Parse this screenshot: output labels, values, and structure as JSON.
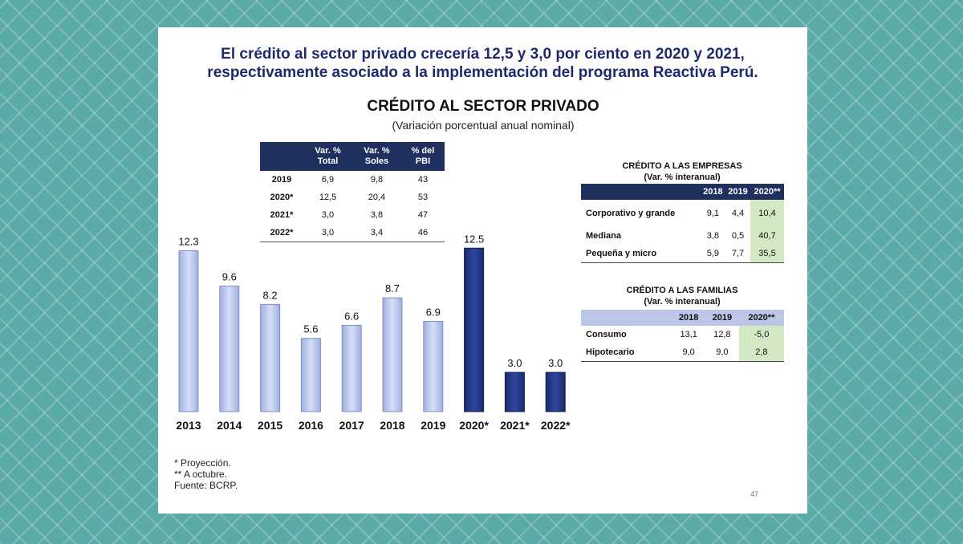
{
  "headline": [
    "El crédito al sector privado crecería 12,5 y 3,0 por ciento en 2020 y 2021,",
    "respectivamente asociado a la implementación del programa Reactiva Perú."
  ],
  "colors": {
    "actual": "#c5d0f0",
    "projection": "#22377f",
    "header": "#1f2f5e",
    "highlight": "#d3e8c4"
  },
  "chart_data": {
    "type": "bar",
    "title": "CRÉDITO AL SECTOR PRIVADO",
    "subtitle": "(Variación porcentual anual nominal)",
    "categories": [
      "2013",
      "2014",
      "2015",
      "2016",
      "2017",
      "2018",
      "2019",
      "2020*",
      "2021*",
      "2022*"
    ],
    "values": [
      12.3,
      9.6,
      8.2,
      5.6,
      6.6,
      8.7,
      6.9,
      12.5,
      3.0,
      3.0
    ],
    "value_labels": [
      "12.3",
      "9.6",
      "8.2",
      "5.6",
      "6.6",
      "8.7",
      "6.9",
      "12.5",
      "3.0",
      "3.0"
    ],
    "projection": [
      false,
      false,
      false,
      false,
      false,
      false,
      false,
      true,
      true,
      true
    ],
    "ylim": [
      0,
      13.5
    ],
    "grid": false,
    "legend": "none"
  },
  "main_table": {
    "headers": [
      [
        "",
        ""
      ],
      [
        "Var. %",
        "Total"
      ],
      [
        "Var. %",
        "Soles"
      ],
      [
        "% del",
        "PBI"
      ]
    ],
    "rows": [
      [
        "2019",
        "6,9",
        "9,8",
        "43"
      ],
      [
        "2020*",
        "12,5",
        "20,4",
        "53"
      ],
      [
        "2021*",
        "3,0",
        "3,8",
        "47"
      ],
      [
        "2022*",
        "3,0",
        "3,4",
        "46"
      ]
    ]
  },
  "empresas": {
    "title": "CRÉDITO A LAS EMPRESAS",
    "subtitle": "(Var. % interanual)",
    "headers": [
      "",
      "2018",
      "2019",
      "2020**"
    ],
    "rows": [
      [
        "Corporativo y grande",
        "9,1",
        "4,4",
        "10,4"
      ],
      [
        "Mediana",
        "3,8",
        "0,5",
        "40,7"
      ],
      [
        "Pequeña y micro",
        "5,9",
        "7,7",
        "35,5"
      ]
    ]
  },
  "familias": {
    "title": "CRÉDITO A LAS FAMILIAS",
    "subtitle": "(Var. % interanual)",
    "headers": [
      "",
      "2018",
      "2019",
      "2020**"
    ],
    "rows": [
      [
        "Consumo",
        "13,1",
        "12,8",
        "-5,0"
      ],
      [
        "Hipotecario",
        "9,0",
        "9,0",
        "2,8"
      ]
    ]
  },
  "footnotes": [
    "* Proyección.",
    "** A octubre.",
    "Fuente: BCRP."
  ],
  "page_number": "47"
}
